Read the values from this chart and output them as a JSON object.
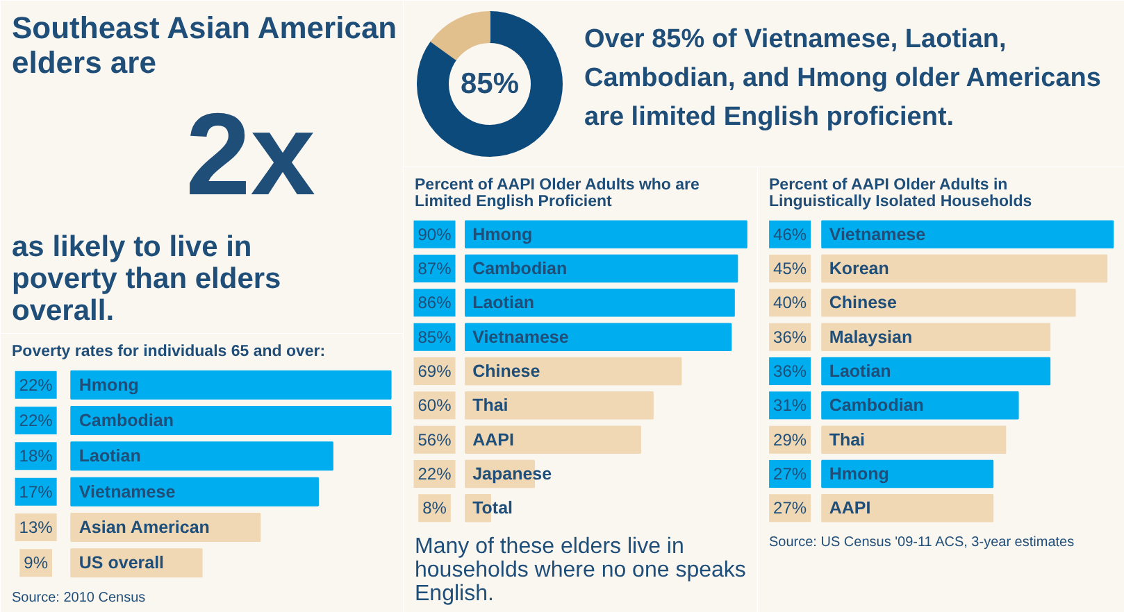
{
  "chart_data": [
    {
      "type": "other",
      "title": "Southeast Asian American elders are",
      "annotations": [
        "2x",
        "as likely to live in poverty than elders overall."
      ]
    },
    {
      "type": "bar",
      "orientation": "horizontal",
      "title": "Poverty rates for individuals 65 and over:",
      "categories": [
        "Hmong",
        "Cambodian",
        "Laotian",
        "Vietnamese",
        "Asian American",
        "US overall"
      ],
      "values": [
        22,
        22,
        18,
        17,
        13,
        9
      ],
      "value_labels": [
        "22%",
        "22%",
        "18%",
        "17%",
        "13%",
        "9%"
      ],
      "colors": [
        "#00aeef",
        "#00aeef",
        "#00aeef",
        "#00aeef",
        "#f0d8b4",
        "#f0d8b4"
      ],
      "annotations": [
        "Source: 2010 Census"
      ]
    },
    {
      "type": "donut",
      "title": "Over 85% of Vietnamese, Laotian, Cambodian, and Hmong older Americans are limited English proficient.",
      "categories": [
        null,
        null
      ],
      "values": [
        85,
        15
      ],
      "colors": [
        "#0d4a7c",
        "#e2c08e"
      ],
      "annotations": [
        "85%"
      ]
    },
    {
      "type": "bar",
      "orientation": "horizontal",
      "title": "Percent of AAPI Older Adults who are Limited English Proficient",
      "categories": [
        "Hmong",
        "Cambodian",
        "Laotian",
        "Vietnamese",
        "Chinese",
        "Thai",
        "AAPI",
        "Japanese",
        "Total"
      ],
      "values": [
        90,
        87,
        86,
        85,
        69,
        60,
        56,
        22,
        8
      ],
      "value_labels": [
        "90%",
        "87%",
        "86%",
        "85%",
        "69%",
        "60%",
        "56%",
        "22%",
        "8%"
      ],
      "colors": [
        "#00aeef",
        "#00aeef",
        "#00aeef",
        "#00aeef",
        "#f0d8b4",
        "#f0d8b4",
        "#f0d8b4",
        "#f0d8b4",
        "#f0d8b4"
      ],
      "annotations": [
        "Many of these elders live in households where no one speaks English."
      ]
    },
    {
      "type": "bar",
      "orientation": "horizontal",
      "title": "Percent of AAPI Older Adults in Linguistically Isolated Households",
      "categories": [
        "Vietnamese",
        "Korean",
        "Chinese",
        "Malaysian",
        "Laotian",
        "Cambodian",
        "Thai",
        "Hmong",
        "AAPI"
      ],
      "values": [
        46,
        45,
        40,
        36,
        36,
        31,
        29,
        27,
        27
      ],
      "value_labels": [
        "46%",
        "45%",
        "40%",
        "36%",
        "36%",
        "31%",
        "29%",
        "27%",
        "27%"
      ],
      "colors": [
        "#00aeef",
        "#f0d8b4",
        "#f0d8b4",
        "#f0d8b4",
        "#00aeef",
        "#00aeef",
        "#f0d8b4",
        "#00aeef",
        "#f0d8b4"
      ],
      "annotations": [
        "Source: US Census '09-11 ACS, 3-year estimates"
      ]
    }
  ]
}
